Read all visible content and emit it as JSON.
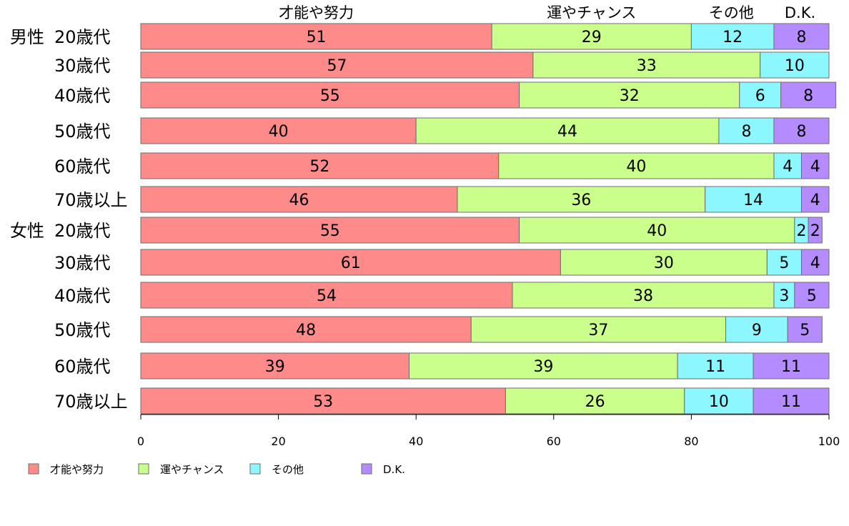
{
  "chart_data": {
    "type": "bar",
    "orientation": "horizontal",
    "stacked": true,
    "xlim": [
      0,
      100
    ],
    "x_ticks": [
      "0",
      "20",
      "40",
      "60",
      "80",
      "100"
    ],
    "tick_values": [
      0,
      20,
      40,
      60,
      80,
      100
    ],
    "legend_position": "bottom-left",
    "grid": false,
    "series": [
      {
        "name": "才能や努力",
        "color": "#ff8a8a"
      },
      {
        "name": "運やチャンス",
        "color": "#cbff8c"
      },
      {
        "name": "その他",
        "color": "#8cf7ff"
      },
      {
        "name": "D.K.",
        "color": "#b58cff"
      }
    ],
    "column_headers": [
      {
        "label": "才能や努力",
        "center_value": 25.5
      },
      {
        "label": "運やチャンス",
        "center_value": 65.5
      },
      {
        "label": "その他",
        "center_value": 85.8
      },
      {
        "label": "D.K.",
        "center_value": 95.8
      }
    ],
    "rows": [
      {
        "group": "男性",
        "label": "20歳代",
        "values": [
          51,
          29,
          12,
          8
        ]
      },
      {
        "group": "",
        "label": "30歳代",
        "values": [
          57,
          33,
          10,
          0
        ]
      },
      {
        "group": "",
        "label": "40歳代",
        "values": [
          55,
          32,
          6,
          8
        ]
      },
      {
        "group": "",
        "label": "50歳代",
        "values": [
          40,
          44,
          8,
          8
        ]
      },
      {
        "group": "",
        "label": "60歳代",
        "values": [
          52,
          40,
          4,
          4
        ]
      },
      {
        "group": "",
        "label": "70歳以上",
        "values": [
          46,
          36,
          14,
          4
        ]
      },
      {
        "group": "女性",
        "label": "20歳代",
        "values": [
          55,
          40,
          2,
          2
        ]
      },
      {
        "group": "",
        "label": "30歳代",
        "values": [
          61,
          30,
          5,
          4
        ]
      },
      {
        "group": "",
        "label": "40歳代",
        "values": [
          54,
          38,
          3,
          5
        ]
      },
      {
        "group": "",
        "label": "50歳代",
        "values": [
          48,
          37,
          9,
          5
        ]
      },
      {
        "group": "",
        "label": "60歳代",
        "values": [
          39,
          39,
          11,
          11
        ]
      },
      {
        "group": "",
        "label": "70歳以上",
        "values": [
          53,
          26,
          10,
          11
        ]
      }
    ]
  }
}
